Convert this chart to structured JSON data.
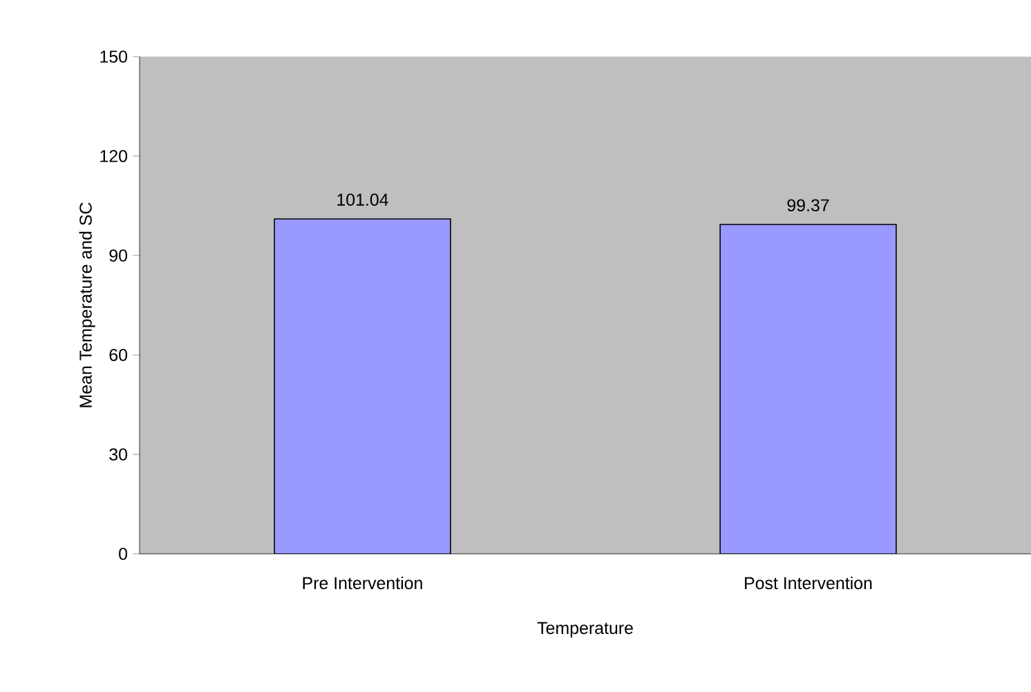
{
  "chart_data": {
    "type": "bar",
    "xlabel": "Temperature",
    "ylabel": "Mean Temperature and SC",
    "categories": [
      "Pre Intervention",
      "Post Intervention"
    ],
    "values": [
      101.04,
      99.37
    ],
    "color": "#9999ff",
    "ylim": [
      0,
      150
    ],
    "yticks": [
      0,
      30,
      60,
      90,
      120,
      150
    ],
    "data_labels": true
  }
}
